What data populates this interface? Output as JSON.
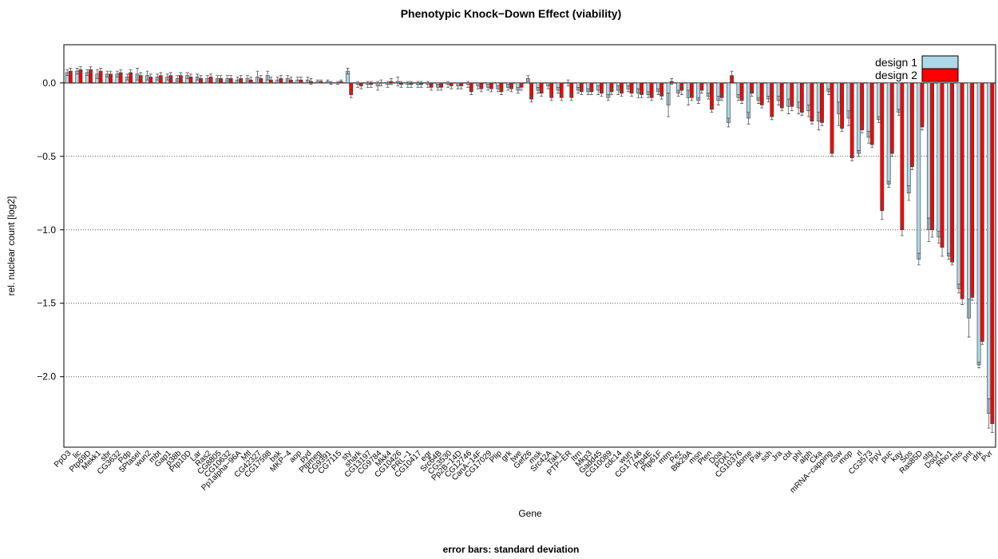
{
  "chart_data": {
    "type": "bar",
    "title": "Phenotypic Knock−Down Effect (viability)",
    "subtitle": "error bars: standard deviation",
    "x_label": "Gene",
    "y_label": "rel. nuclear count [log2]",
    "categories": [
      "PpD3",
      "lic",
      "Ptp69D",
      "Mekk1",
      "sbr",
      "CG3632",
      "Pdp",
      "5PtaseI",
      "wun2",
      "mbt",
      "Gap1",
      "p38b",
      "Ptp10D",
      "Lar",
      "Ras2",
      "CG8805",
      "CG10632",
      "Pp1alpha−96A",
      "Mtl",
      "CG42327",
      "CG17598",
      "bsk",
      "MKP−4",
      "aop",
      "pyd",
      "Ptpmeg",
      "CG9391",
      "CG7115",
      "sty",
      "shark",
      "CG13197",
      "CG9784",
      "Mkk4",
      "CG10426",
      "PRL−1",
      "CG10417",
      "egr",
      "Src64B",
      "CG3530",
      "Pp2B−14D",
      "CG12746",
      "CanA−14F",
      "CG17029",
      "Plip",
      "grk",
      "twe",
      "Gef26",
      "msk",
      "Src42A",
      "Tak1",
      "PTP−ER",
      "Itrn",
      "Mkp3",
      "Gadd45",
      "CG10089",
      "cdc14",
      "wun",
      "CG17746",
      "Ptp4E",
      "Ptp61F",
      "mtm",
      "Pez",
      "Btk29A",
      "msn",
      "Pten",
      "Doa",
      "PDK1",
      "CG10376",
      "dome",
      "Pak",
      "ssh",
      "Jra",
      "cbt",
      "phl",
      "alph",
      "Cka",
      "mRNA−capping",
      "csw",
      "mop",
      "rl",
      "CG3573",
      "PpV",
      "puc",
      "kay",
      "Sos",
      "Ras85D",
      "stg",
      "Dsor1",
      "Rho1",
      "mts",
      "pnt",
      "drk",
      "Pvr"
    ],
    "series": [
      {
        "name": "design 1",
        "color": "#add8e6",
        "values": [
          0.07,
          0.08,
          0.07,
          0.06,
          0.06,
          0.06,
          0.04,
          0.06,
          0.05,
          0.04,
          0.04,
          0.03,
          0.05,
          0.04,
          0.03,
          0.03,
          0.03,
          0.02,
          0.03,
          0.04,
          0.05,
          0.02,
          0.03,
          0.02,
          0.02,
          0.01,
          0.01,
          0,
          0.08,
          -0.01,
          -0.01,
          -0.02,
          -0.01,
          0.01,
          -0.01,
          -0.01,
          -0.01,
          -0.03,
          -0.01,
          -0.02,
          -0.01,
          -0.02,
          -0.03,
          -0.04,
          -0.03,
          -0.05,
          0.03,
          -0.05,
          -0.02,
          -0.05,
          0,
          -0.05,
          -0.06,
          -0.05,
          -0.1,
          -0.05,
          -0.04,
          -0.07,
          -0.08,
          -0.06,
          -0.15,
          -0.07,
          -0.1,
          -0.12,
          -0.09,
          -0.12,
          -0.27,
          -0.1,
          -0.24,
          -0.12,
          -0.11,
          -0.12,
          -0.16,
          -0.17,
          -0.19,
          -0.26,
          -0.06,
          -0.21,
          -0.24,
          -0.48,
          -0.37,
          -0.25,
          -0.69,
          -0.2,
          -0.75,
          -1.2,
          -1,
          -1.05,
          -1.18,
          -1.4,
          -1.6,
          -1.92,
          -2.25
        ],
        "errors": [
          0.02,
          0.02,
          0.02,
          0.03,
          0.02,
          0.02,
          0.02,
          0.04,
          0.03,
          0.02,
          0.02,
          0.02,
          0.02,
          0.02,
          0.02,
          0.02,
          0.02,
          0.02,
          0.02,
          0.04,
          0.03,
          0.02,
          0.02,
          0.02,
          0.02,
          0.01,
          0.01,
          0.01,
          0.02,
          0.02,
          0.02,
          0.03,
          0.02,
          0.03,
          0.02,
          0.02,
          0.02,
          0.02,
          0.02,
          0.02,
          0.02,
          0.02,
          0.02,
          0.02,
          0.02,
          0.02,
          0.02,
          0.02,
          0.02,
          0.02,
          0.02,
          0.02,
          0.02,
          0.03,
          0.02,
          0.03,
          0.02,
          0.03,
          0.02,
          0.02,
          0.08,
          0.02,
          0.05,
          0.02,
          0.02,
          0.03,
          0.03,
          0.02,
          0.04,
          0.02,
          0.02,
          0.03,
          0.05,
          0.04,
          0.04,
          0.06,
          0.02,
          0.08,
          0.05,
          0.02,
          0.04,
          0.02,
          0.02,
          0.02,
          0.05,
          0.04,
          0.08,
          0.04,
          0.02,
          0.03,
          0.13,
          0.02,
          0.1
        ]
      },
      {
        "name": "design 2",
        "color": "#ff0000",
        "values": [
          0.08,
          0.09,
          0.09,
          0.08,
          0.06,
          0.07,
          0.07,
          0.05,
          0.04,
          0.05,
          0.05,
          0.05,
          0.04,
          0.03,
          0.04,
          0.03,
          0.03,
          0.03,
          0.02,
          0.03,
          0.02,
          0.03,
          0.02,
          0.02,
          0.01,
          0.01,
          0,
          0.01,
          -0.08,
          -0.02,
          -0.01,
          0,
          0.01,
          -0.01,
          -0.01,
          -0.01,
          -0.03,
          -0.03,
          -0.02,
          -0.02,
          -0.06,
          -0.04,
          -0.04,
          -0.06,
          -0.04,
          -0.03,
          -0.11,
          -0.07,
          -0.1,
          -0.1,
          -0.1,
          -0.06,
          -0.06,
          -0.07,
          -0.06,
          -0.07,
          -0.07,
          -0.08,
          -0.1,
          -0.09,
          0.01,
          -0.05,
          -0.1,
          -0.05,
          -0.18,
          -0.1,
          0.05,
          -0.12,
          -0.07,
          -0.15,
          -0.23,
          -0.17,
          -0.16,
          -0.2,
          -0.26,
          -0.27,
          -0.48,
          -0.31,
          -0.51,
          -0.32,
          -0.42,
          -0.87,
          -0.48,
          -1,
          -0.57,
          -0.3,
          -1,
          -1.12,
          -1.22,
          -1.47,
          -1.46,
          -1.76,
          -2.32
        ],
        "errors": [
          0.02,
          0.02,
          0.02,
          0.02,
          0.02,
          0.02,
          0.02,
          0.02,
          0.02,
          0.02,
          0.02,
          0.02,
          0.02,
          0.02,
          0.02,
          0.02,
          0.02,
          0.02,
          0.02,
          0.02,
          0.02,
          0.02,
          0.02,
          0.02,
          0.02,
          0.01,
          0.01,
          0.01,
          0.02,
          0.02,
          0.02,
          0.02,
          0.02,
          0.02,
          0.02,
          0.02,
          0.02,
          0.02,
          0.02,
          0.02,
          0.02,
          0.02,
          0.02,
          0.02,
          0.02,
          0.02,
          0.02,
          0.02,
          0.02,
          0.02,
          0.02,
          0.02,
          0.02,
          0.02,
          0.02,
          0.02,
          0.02,
          0.02,
          0.02,
          0.02,
          0.02,
          0.03,
          0.02,
          0.02,
          0.02,
          0.02,
          0.03,
          0.02,
          0.02,
          0.02,
          0.02,
          0.02,
          0.03,
          0.02,
          0.02,
          0.02,
          0.02,
          0.02,
          0.02,
          0.02,
          0.02,
          0.06,
          0.02,
          0.04,
          0.02,
          0.02,
          0.05,
          0.06,
          0.02,
          0.04,
          0.02,
          0.02,
          0.06
        ]
      }
    ],
    "ylim": [
      -2.48,
      0.26
    ],
    "yticks": [
      {
        "value": -2,
        "label": "−2.0"
      },
      {
        "value": -1.5,
        "label": "−1.5"
      },
      {
        "value": -1,
        "label": "−1.0"
      },
      {
        "value": -0.5,
        "label": "−0.5"
      },
      {
        "value": 0,
        "label": "0.0"
      }
    ],
    "grid": true,
    "legend": "top-right"
  }
}
